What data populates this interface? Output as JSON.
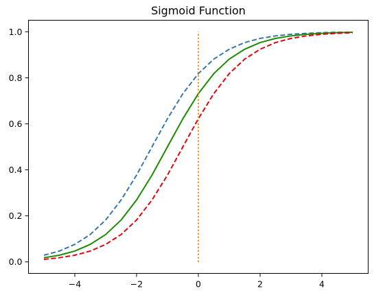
{
  "chart_data": {
    "type": "line",
    "title": "Sigmoid Function",
    "xlabel": "",
    "ylabel": "",
    "xlim": [
      -5.5,
      5.5
    ],
    "ylim": [
      -0.05,
      1.05
    ],
    "x_ticks": [
      -4,
      -2,
      0,
      2,
      4
    ],
    "x_tick_labels": [
      "−4",
      "−2",
      "0",
      "2",
      "4"
    ],
    "y_ticks": [
      0.0,
      0.2,
      0.4,
      0.6,
      0.8,
      1.0
    ],
    "y_tick_labels": [
      "0.0",
      "0.2",
      "0.4",
      "0.6",
      "0.8",
      "1.0"
    ],
    "grid": false,
    "legend": "none",
    "series": [
      {
        "style": "dashed",
        "color": "#3776ab",
        "x": [
          -5,
          -4.5,
          -4,
          -3.5,
          -3,
          -2.5,
          -2,
          -1.5,
          -1,
          -0.5,
          0,
          0.5,
          1,
          1.5,
          2,
          2.5,
          3,
          3.5,
          4,
          4.5,
          5
        ],
        "y": [
          0.029,
          0.047,
          0.076,
          0.119,
          0.182,
          0.269,
          0.377,
          0.5,
          0.622,
          0.731,
          0.818,
          0.881,
          0.924,
          0.953,
          0.971,
          0.982,
          0.989,
          0.993,
          0.996,
          0.998,
          0.998
        ]
      },
      {
        "style": "solid",
        "color": "#1a8a00",
        "x": [
          -5,
          -4.5,
          -4,
          -3.5,
          -3,
          -2.5,
          -2,
          -1.5,
          -1,
          -0.5,
          0,
          0.5,
          1,
          1.5,
          2,
          2.5,
          3,
          3.5,
          4,
          4.5,
          5
        ],
        "y": [
          0.018,
          0.029,
          0.047,
          0.076,
          0.119,
          0.182,
          0.269,
          0.377,
          0.5,
          0.622,
          0.731,
          0.818,
          0.881,
          0.924,
          0.953,
          0.971,
          0.982,
          0.989,
          0.993,
          0.996,
          0.998
        ]
      },
      {
        "style": "dashed",
        "color": "#e8000b",
        "x": [
          -5,
          -4.5,
          -4,
          -3.5,
          -3,
          -2.5,
          -2,
          -1.5,
          -1,
          -0.5,
          0,
          0.5,
          1,
          1.5,
          2,
          2.5,
          3,
          3.5,
          4,
          4.5,
          5
        ],
        "y": [
          0.011,
          0.018,
          0.029,
          0.047,
          0.076,
          0.119,
          0.182,
          0.269,
          0.377,
          0.5,
          0.622,
          0.731,
          0.818,
          0.881,
          0.924,
          0.953,
          0.971,
          0.982,
          0.989,
          0.993,
          0.996
        ]
      },
      {
        "style": "dotted",
        "color": "#ff7f0e",
        "x": [
          0,
          0
        ],
        "y": [
          0,
          1
        ]
      }
    ]
  }
}
